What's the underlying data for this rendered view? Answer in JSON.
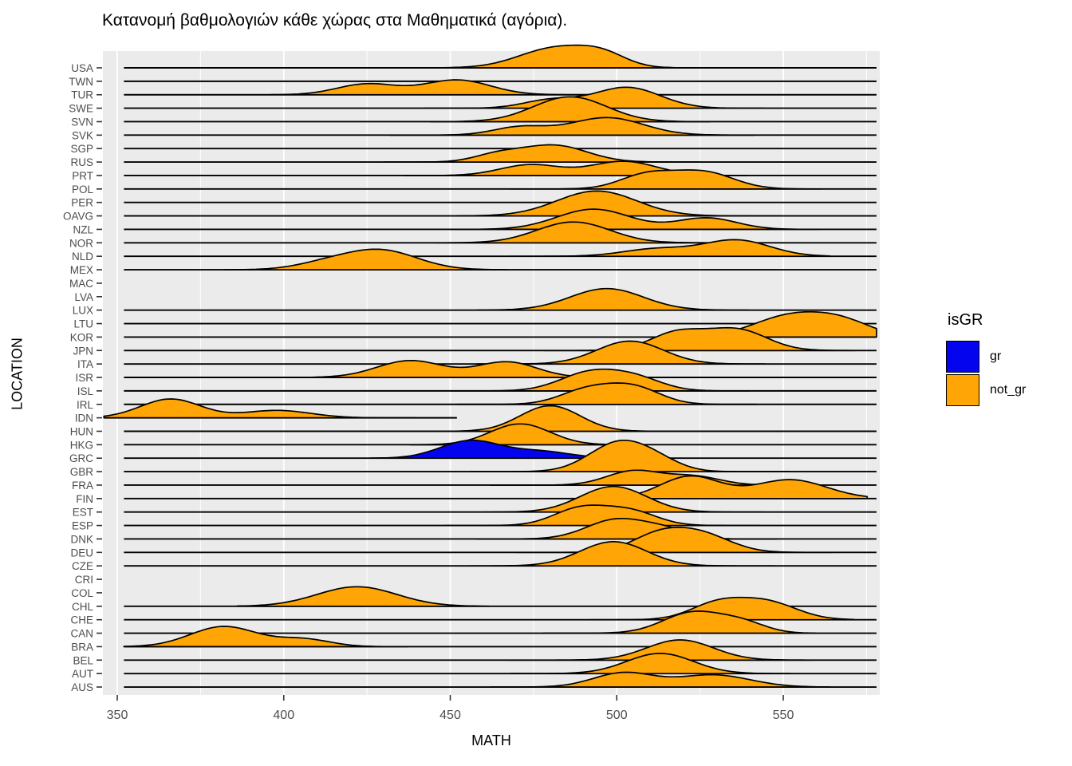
{
  "title": "Κατανομή βαθμολογιών κάθε χώρας στα Μαθηματικά (αγόρια).",
  "x_axis": {
    "label": "MATH",
    "ticks": [
      "350",
      "400",
      "450",
      "500",
      "550"
    ]
  },
  "y_axis": {
    "label": "LOCATION"
  },
  "legend": {
    "title": "isGR",
    "items": [
      {
        "label": "gr",
        "color_key": "gr"
      },
      {
        "label": "not_gr",
        "color_key": "not_gr"
      }
    ]
  },
  "colors": {
    "gr": "#0404EE",
    "not_gr": "#FFA505",
    "panel_bg": "#EBEBEB",
    "grid": "#FFFFFF",
    "axis_text": "#4D4D4D",
    "outline": "#000000",
    "tick": "#333333"
  },
  "chart_data": {
    "type": "ridgeline",
    "title": "Κατανομή βαθμολογιών κάθε χώρας στα Μαθηματικά (αγόρια).",
    "xlabel": "MATH",
    "ylabel": "LOCATION",
    "x_ticks": [
      350,
      400,
      450,
      500,
      550
    ],
    "x_minor_ticks": [
      375,
      425,
      475,
      525,
      575
    ],
    "x_range": [
      345,
      580
    ],
    "legend_position": "right",
    "grid": true,
    "note": "components are gaussian bumps [mean_MATH, sd_MATH, height_in_rows]; support is the MATH range of the visible density; state: data=line+curve, line=baseline only, empty=nothing",
    "default_line_span": [
      352,
      578
    ],
    "series": [
      {
        "code": "USA",
        "group": "not_gr",
        "state": "data",
        "components": [
          [
            482,
            11,
            1.5
          ],
          [
            496,
            7,
            0.75
          ]
        ],
        "support": [
          436,
          526
        ]
      },
      {
        "code": "TWN",
        "group": "not_gr",
        "state": "line",
        "components": [],
        "support": null
      },
      {
        "code": "TUR",
        "group": "not_gr",
        "state": "data",
        "components": [
          [
            425,
            9,
            0.8
          ],
          [
            452,
            10,
            1.1
          ]
        ],
        "support": [
          396,
          492
        ]
      },
      {
        "code": "SWE",
        "group": "not_gr",
        "state": "data",
        "components": [
          [
            480,
            8,
            0.6
          ],
          [
            503,
            10,
            1.55
          ]
        ],
        "support": [
          442,
          545
        ]
      },
      {
        "code": "SVN",
        "group": "not_gr",
        "state": "data",
        "components": [
          [
            486,
            11,
            1.85
          ]
        ],
        "support": [
          444,
          528
        ]
      },
      {
        "code": "SVK",
        "group": "not_gr",
        "state": "data",
        "components": [
          [
            471,
            8,
            0.6
          ],
          [
            497,
            11,
            1.3
          ]
        ],
        "support": [
          432,
          542
        ]
      },
      {
        "code": "SGP",
        "group": "not_gr",
        "state": "line",
        "components": [],
        "support": null
      },
      {
        "code": "RUS",
        "group": "not_gr",
        "state": "data",
        "components": [
          [
            464,
            7,
            0.5
          ],
          [
            481,
            10,
            1.25
          ]
        ],
        "support": [
          430,
          525
        ]
      },
      {
        "code": "PRT",
        "group": "not_gr",
        "state": "data",
        "components": [
          [
            474,
            9,
            0.8
          ],
          [
            502,
            10,
            1.05
          ]
        ],
        "support": [
          436,
          540
        ]
      },
      {
        "code": "POL",
        "group": "not_gr",
        "state": "data",
        "components": [
          [
            509,
            8,
            1.05
          ],
          [
            526,
            9,
            1.25
          ]
        ],
        "support": [
          468,
          562
        ]
      },
      {
        "code": "PER",
        "group": "not_gr",
        "state": "line",
        "components": [],
        "support": null
      },
      {
        "code": "OAVG",
        "group": "not_gr",
        "state": "data",
        "components": [
          [
            494,
            12,
            1.85
          ]
        ],
        "support": [
          452,
          550
        ]
      },
      {
        "code": "NZL",
        "group": "not_gr",
        "state": "data",
        "components": [
          [
            493,
            11,
            1.5
          ],
          [
            527,
            9,
            0.85
          ]
        ],
        "support": [
          450,
          562
        ]
      },
      {
        "code": "NOR",
        "group": "not_gr",
        "state": "data",
        "components": [
          [
            487,
            11,
            1.55
          ]
        ],
        "support": [
          446,
          538
        ]
      },
      {
        "code": "NLD",
        "group": "not_gr",
        "state": "data",
        "components": [
          [
            512,
            10,
            0.55
          ],
          [
            536,
            10,
            1.2
          ]
        ],
        "support": [
          468,
          565
        ]
      },
      {
        "code": "MEX",
        "group": "not_gr",
        "state": "data",
        "components": [
          [
            412,
            9,
            0.4
          ],
          [
            429,
            11,
            1.45
          ]
        ],
        "support": [
          382,
          468
        ]
      },
      {
        "code": "MAC",
        "group": "not_gr",
        "state": "empty",
        "components": [],
        "support": null
      },
      {
        "code": "LVA",
        "group": "not_gr",
        "state": "empty",
        "components": [],
        "support": null
      },
      {
        "code": "LUX",
        "group": "not_gr",
        "state": "data",
        "components": [
          [
            497,
            11,
            1.6
          ]
        ],
        "support": [
          458,
          540
        ]
      },
      {
        "code": "LTU",
        "group": "not_gr",
        "state": "line",
        "components": [],
        "support": null
      },
      {
        "code": "KOR",
        "group": "not_gr",
        "state": "data",
        "components": [
          [
            552,
            11,
            1.55
          ],
          [
            568,
            9,
            1.0
          ]
        ],
        "support": [
          512,
          579
        ]
      },
      {
        "code": "JPN",
        "group": "not_gr",
        "state": "data",
        "components": [
          [
            518,
            8,
            1.3
          ],
          [
            536,
            9,
            1.55
          ]
        ],
        "support": [
          478,
          572
        ]
      },
      {
        "code": "ITA",
        "group": "not_gr",
        "state": "data",
        "components": [
          [
            504,
            10,
            1.7
          ]
        ],
        "support": [
          458,
          545
        ]
      },
      {
        "code": "ISR",
        "group": "not_gr",
        "state": "data",
        "components": [
          [
            438,
            10,
            1.25
          ],
          [
            467,
            9,
            1.15
          ]
        ],
        "support": [
          402,
          520
        ]
      },
      {
        "code": "ISL",
        "group": "not_gr",
        "state": "data",
        "components": [
          [
            492,
            9,
            1.35
          ],
          [
            506,
            8,
            0.85
          ]
        ],
        "support": [
          450,
          540
        ]
      },
      {
        "code": "IRL",
        "group": "not_gr",
        "state": "data",
        "components": [
          [
            491,
            8,
            1.05
          ],
          [
            505,
            8,
            1.25
          ]
        ],
        "support": [
          452,
          542
        ]
      },
      {
        "code": "IDN",
        "group": "not_gr",
        "state": "data",
        "components": [
          [
            366,
            9,
            1.4
          ],
          [
            398,
            10,
            0.55
          ]
        ],
        "support": [
          346,
          440
        ],
        "line_span": [
          346,
          452
        ]
      },
      {
        "code": "HUN",
        "group": "not_gr",
        "state": "data",
        "components": [
          [
            480,
            9,
            1.9
          ]
        ],
        "support": [
          442,
          520
        ]
      },
      {
        "code": "HKG",
        "group": "not_gr",
        "state": "data",
        "components": [
          [
            471,
            9,
            1.55
          ]
        ],
        "support": [
          438,
          506
        ]
      },
      {
        "code": "GRC",
        "group": "gr",
        "state": "data",
        "components": [
          [
            456,
            9,
            1.3
          ],
          [
            477,
            9,
            0.5
          ]
        ],
        "support": [
          426,
          500
        ]
      },
      {
        "code": "GBR",
        "group": "not_gr",
        "state": "data",
        "components": [
          [
            501,
            9,
            2.2
          ],
          [
            513,
            7,
            0.5
          ]
        ],
        "support": [
          456,
          552
        ]
      },
      {
        "code": "FRA",
        "group": "not_gr",
        "state": "data",
        "components": [
          [
            505,
            8,
            1.05
          ],
          [
            523,
            8,
            0.65
          ]
        ],
        "support": [
          462,
          548
        ]
      },
      {
        "code": "FIN",
        "group": "not_gr",
        "state": "data",
        "components": [
          [
            522,
            9,
            1.65
          ],
          [
            552,
            11,
            1.4
          ]
        ],
        "support": [
          478,
          576
        ]
      },
      {
        "code": "EST",
        "group": "not_gr",
        "state": "data",
        "components": [
          [
            499,
            10,
            1.9
          ]
        ],
        "support": [
          460,
          545
        ]
      },
      {
        "code": "ESP",
        "group": "not_gr",
        "state": "data",
        "components": [
          [
            489,
            8,
            1.25
          ],
          [
            504,
            8,
            1.05
          ]
        ],
        "support": [
          448,
          543
        ]
      },
      {
        "code": "DNK",
        "group": "not_gr",
        "state": "data",
        "components": [
          [
            500,
            9,
            1.45
          ],
          [
            515,
            7,
            0.6
          ]
        ],
        "support": [
          458,
          548
        ]
      },
      {
        "code": "DEU",
        "group": "not_gr",
        "state": "data",
        "components": [
          [
            512,
            8,
            1.15
          ],
          [
            525,
            9,
            1.35
          ]
        ],
        "support": [
          470,
          565
        ]
      },
      {
        "code": "CZE",
        "group": "not_gr",
        "state": "data",
        "components": [
          [
            499,
            10,
            1.8
          ]
        ],
        "support": [
          456,
          548
        ]
      },
      {
        "code": "CRI",
        "group": "not_gr",
        "state": "empty",
        "components": [],
        "support": null
      },
      {
        "code": "COL",
        "group": "not_gr",
        "state": "empty",
        "components": [],
        "support": null
      },
      {
        "code": "CHL",
        "group": "not_gr",
        "state": "data",
        "components": [
          [
            422,
            12,
            1.45
          ]
        ],
        "support": [
          386,
          462
        ]
      },
      {
        "code": "CHE",
        "group": "not_gr",
        "state": "data",
        "components": [
          [
            530,
            8,
            1.15
          ],
          [
            545,
            9,
            1.3
          ]
        ],
        "support": [
          492,
          572
        ]
      },
      {
        "code": "CAN",
        "group": "not_gr",
        "state": "data",
        "components": [
          [
            523,
            9,
            1.55
          ],
          [
            538,
            7,
            0.7
          ]
        ],
        "support": [
          478,
          560
        ]
      },
      {
        "code": "BRA",
        "group": "not_gr",
        "state": "data",
        "components": [
          [
            382,
            10,
            1.5
          ],
          [
            406,
            8,
            0.55
          ]
        ],
        "support": [
          352,
          438
        ]
      },
      {
        "code": "BEL",
        "group": "not_gr",
        "state": "data",
        "components": [
          [
            519,
            10,
            1.5
          ]
        ],
        "support": [
          468,
          558
        ]
      },
      {
        "code": "AUT",
        "group": "not_gr",
        "state": "data",
        "components": [
          [
            513,
            10,
            1.5
          ]
        ],
        "support": [
          468,
          552
        ]
      },
      {
        "code": "AUS",
        "group": "not_gr",
        "state": "data",
        "components": [
          [
            502,
            9,
            1.05
          ],
          [
            529,
            11,
            0.9
          ]
        ],
        "support": [
          462,
          565
        ]
      }
    ]
  }
}
